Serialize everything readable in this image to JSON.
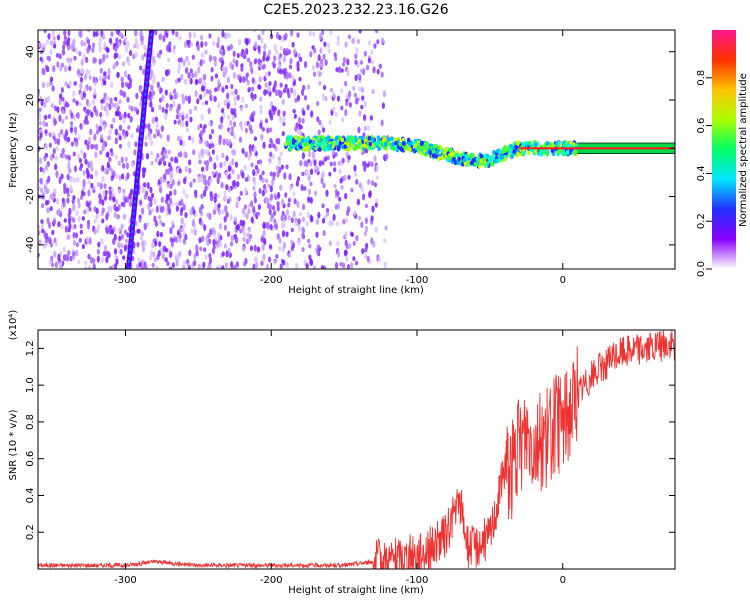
{
  "title": "C2E5.2023.232.23.16.G26",
  "colorbar": {
    "label": "Normalized spectral amplitude",
    "ticks": [
      "0.0",
      "0.2",
      "0.4",
      "0.6",
      "0.8"
    ],
    "tick_values": [
      0.0,
      0.2,
      0.4,
      0.6,
      0.8
    ],
    "range": [
      0,
      1
    ],
    "colors": [
      "#ffffff",
      "#8a00ff",
      "#2030ff",
      "#00e5ff",
      "#00ff66",
      "#aaff00",
      "#ffc400",
      "#ff3000",
      "#ff1a8c"
    ]
  },
  "chart_data": [
    {
      "type": "heatmap",
      "xlabel": "Height of straight line (km)",
      "ylabel": "Frequency (Hz)",
      "xlim": [
        -360,
        77
      ],
      "ylim": [
        -50,
        49
      ],
      "xticks": [
        -300,
        -200,
        -100,
        0
      ],
      "yticks": [
        -40,
        -20,
        0,
        20,
        40
      ],
      "xtick_labels": [
        "-300",
        "-200",
        "-100",
        "0"
      ],
      "ytick_labels": [
        "-40",
        "-20",
        "0",
        "20",
        "40"
      ],
      "features": {
        "noise_field_x_range": [
          -360,
          -130
        ],
        "diagonal_line": {
          "start": [
            -298,
            -50
          ],
          "end": [
            -282,
            49
          ]
        },
        "signal_band": {
          "x": [
            -190,
            -150,
            -120,
            -100,
            -85,
            -70,
            -60,
            -50,
            -40,
            -30,
            -20,
            -10,
            0,
            10,
            77
          ],
          "freq": [
            2,
            2,
            2,
            1,
            -2,
            -4,
            -5,
            -5,
            -2,
            0,
            0,
            0,
            0,
            0,
            0
          ]
        }
      }
    },
    {
      "type": "line",
      "xlabel": "Height of straight line (km)",
      "ylabel": "SNR (10 * v/v)",
      "y_multiplier_label": "(x10⁴)",
      "xlim": [
        -360,
        77
      ],
      "ylim": [
        0,
        1.3
      ],
      "xticks": [
        -300,
        -200,
        -100,
        0
      ],
      "yticks": [
        0.2,
        0.4,
        0.6,
        0.8,
        1.0,
        1.2
      ],
      "xtick_labels": [
        "-300",
        "-200",
        "-100",
        "0"
      ],
      "ytick_labels": [
        "0.2",
        "0.4",
        "0.6",
        "0.8",
        "1.0",
        "1.2"
      ],
      "series": [
        {
          "color": "#ee3333",
          "x": [
            -360,
            -300,
            -280,
            -250,
            -200,
            -150,
            -130,
            -110,
            -100,
            -90,
            -80,
            -75,
            -70,
            -65,
            -60,
            -55,
            -50,
            -45,
            -40,
            -35,
            -30,
            -25,
            -20,
            -15,
            -10,
            -5,
            0,
            10,
            20,
            30,
            40,
            50,
            60,
            77
          ],
          "y": [
            0.02,
            0.02,
            0.04,
            0.02,
            0.02,
            0.02,
            0.04,
            0.06,
            0.08,
            0.12,
            0.18,
            0.3,
            0.35,
            0.12,
            0.12,
            0.15,
            0.18,
            0.35,
            0.55,
            0.55,
            0.65,
            0.75,
            0.7,
            0.7,
            0.72,
            0.78,
            0.8,
            0.95,
            1.05,
            1.12,
            1.18,
            1.2,
            1.2,
            1.22
          ]
        }
      ]
    }
  ]
}
